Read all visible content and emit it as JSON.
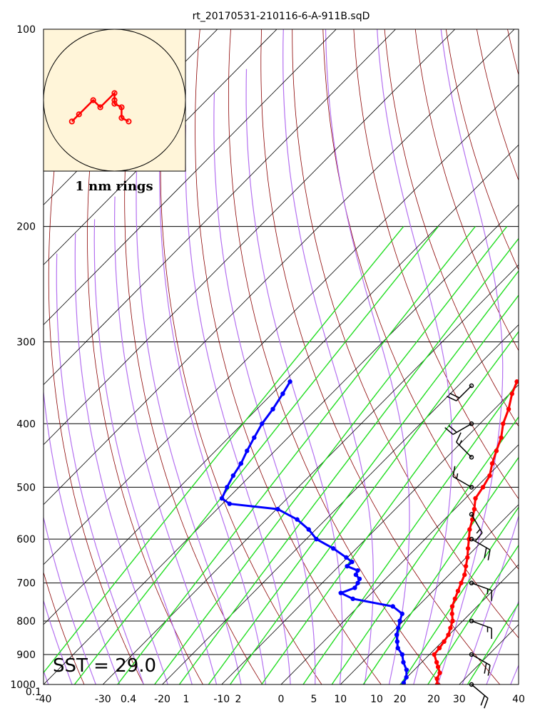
{
  "chart_data": {
    "type": "skew-t",
    "title": "rt_20170531-210116-6-A-911B.sqD",
    "sst_label": "SST = 29.0",
    "hodograph_label": "1 nm rings",
    "y_axis": {
      "scale": "log-pressure",
      "range": [
        1000,
        100
      ],
      "ticks": [
        100,
        200,
        300,
        400,
        500,
        600,
        700,
        800,
        900,
        1000
      ]
    },
    "x_axis": {
      "range": [
        -40,
        40
      ],
      "ticks": [
        -40,
        -30,
        -20,
        -10,
        0,
        10,
        20,
        30,
        40
      ]
    },
    "mixing_ratio_labels": [
      "0.1",
      "0.4",
      "1",
      "2",
      "5",
      "10",
      "20"
    ],
    "temperature": {
      "color": "#ff0000",
      "pressure": [
        1013,
        1000,
        980,
        960,
        940,
        925,
        900,
        880,
        860,
        840,
        820,
        800,
        780,
        760,
        740,
        720,
        700,
        680,
        660,
        640,
        620,
        600,
        580,
        560,
        540,
        520,
        500,
        480,
        460,
        440,
        420,
        400,
        380,
        360,
        345
      ],
      "values": [
        27.5,
        26.3,
        25.3,
        24.8,
        23.5,
        22.5,
        20.8,
        20.6,
        20.3,
        19.9,
        19.1,
        18.3,
        17.0,
        15.8,
        15.0,
        14.2,
        13.4,
        12.6,
        11.4,
        10.2,
        8.8,
        7.4,
        5.9,
        4.7,
        3.3,
        1.7,
        1.1,
        0.3,
        -1.3,
        -2.7,
        -4.1,
        -6.1,
        -7.6,
        -9.6,
        -10.8
      ]
    },
    "dewpoint": {
      "color": "#0000ff",
      "pressure": [
        1010,
        995,
        975,
        950,
        925,
        900,
        880,
        860,
        840,
        820,
        800,
        780,
        760,
        740,
        725,
        712,
        700,
        690,
        680,
        670,
        660,
        650,
        640,
        620,
        600,
        580,
        560,
        540,
        530,
        520,
        500,
        480,
        460,
        440,
        420,
        400,
        380,
        360,
        345
      ],
      "values": [
        21.6,
        20.4,
        19.9,
        18.7,
        16.9,
        15.4,
        13.6,
        12.4,
        11.2,
        10.3,
        9.4,
        8.6,
        5.8,
        -2.2,
        -5.2,
        -3.7,
        -4.0,
        -4.4,
        -5.7,
        -6.1,
        -8.6,
        -8.5,
        -10.2,
        -13.9,
        -18.3,
        -21.2,
        -24.8,
        -29.8,
        -38.8,
        -41.0,
        -42.0,
        -42.9,
        -43.6,
        -44.7,
        -45.7,
        -46.7,
        -47.3,
        -48.2,
        -49.0
      ]
    },
    "winds": [
      {
        "pressure": 1000,
        "direction": 130,
        "speed": 20
      },
      {
        "pressure": 900,
        "direction": 120,
        "speed": 20
      },
      {
        "pressure": 800,
        "direction": 110,
        "speed": 15
      },
      {
        "pressure": 700,
        "direction": 110,
        "speed": 15
      },
      {
        "pressure": 600,
        "direction": 120,
        "speed": 20
      },
      {
        "pressure": 550,
        "direction": 150,
        "speed": 15
      },
      {
        "pressure": 500,
        "direction": 300,
        "speed": 15
      },
      {
        "pressure": 450,
        "direction": 315,
        "speed": 15
      },
      {
        "pressure": 400,
        "direction": 240,
        "speed": 20
      },
      {
        "pressure": 350,
        "direction": 225,
        "speed": 20
      }
    ],
    "hodograph": [
      {
        "u": -0.6,
        "v": -0.3
      },
      {
        "u": -0.5,
        "v": -0.2
      },
      {
        "u": -0.3,
        "v": 0.0
      },
      {
        "u": -0.2,
        "v": -0.1
      },
      {
        "u": 0.0,
        "v": 0.1
      },
      {
        "u": 0.0,
        "v": 0.0
      },
      {
        "u": 0.0,
        "v": -0.05
      },
      {
        "u": 0.1,
        "v": -0.1
      },
      {
        "u": 0.1,
        "v": -0.25
      },
      {
        "u": 0.2,
        "v": -0.3
      }
    ]
  },
  "colors": {
    "isotherm": "#000000",
    "dry_adiabat": "#8b0000",
    "moist_adiabat": "#b470f0",
    "mixing_ratio": "#22dd22",
    "hodograph_bg": "#fff5d9",
    "hodograph_line": "#ff0000"
  }
}
